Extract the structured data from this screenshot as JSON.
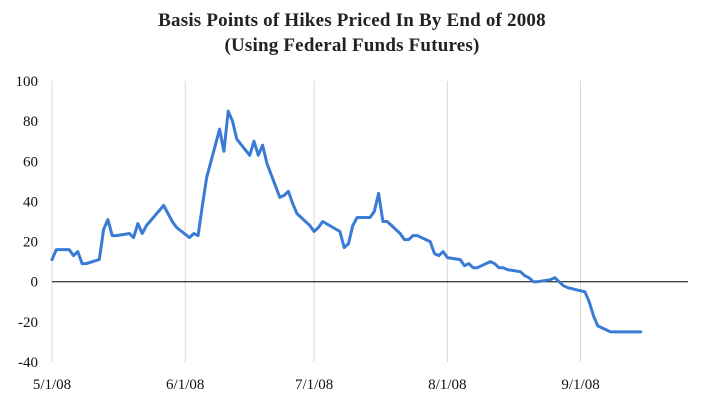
{
  "chart_data": {
    "type": "line",
    "title": "Basis Points of Hikes Priced In By End of 2008",
    "subtitle": "(Using Federal Funds Futures)",
    "xlabel": "",
    "ylabel": "",
    "xlim": [
      "2008-05-01",
      "2008-09-26"
    ],
    "ylim": [
      -40,
      100
    ],
    "y_ticks": [
      100,
      80,
      60,
      40,
      20,
      0,
      -20,
      -40
    ],
    "x_ticks": [
      {
        "date": "2008-05-01",
        "label": "5/1/08"
      },
      {
        "date": "2008-06-01",
        "label": "6/1/08"
      },
      {
        "date": "2008-07-01",
        "label": "7/1/08"
      },
      {
        "date": "2008-08-01",
        "label": "8/1/08"
      },
      {
        "date": "2008-09-01",
        "label": "9/1/08"
      }
    ],
    "grid": "vertical",
    "series_color": "#3a7bd5",
    "series": [
      {
        "x": [
          "2008-05-01",
          "2008-05-02",
          "2008-05-05",
          "2008-05-06",
          "2008-05-07",
          "2008-05-08",
          "2008-05-09",
          "2008-05-12",
          "2008-05-13",
          "2008-05-14",
          "2008-05-15",
          "2008-05-16",
          "2008-05-19",
          "2008-05-20",
          "2008-05-21",
          "2008-05-22",
          "2008-05-23",
          "2008-05-27",
          "2008-05-28",
          "2008-05-29",
          "2008-05-30",
          "2008-06-02",
          "2008-06-03",
          "2008-06-04",
          "2008-06-05",
          "2008-06-06",
          "2008-06-09",
          "2008-06-10",
          "2008-06-11",
          "2008-06-12",
          "2008-06-13",
          "2008-06-16",
          "2008-06-17",
          "2008-06-18",
          "2008-06-19",
          "2008-06-20",
          "2008-06-23",
          "2008-06-24",
          "2008-06-25",
          "2008-06-26",
          "2008-06-27",
          "2008-06-30",
          "2008-07-01",
          "2008-07-02",
          "2008-07-03",
          "2008-07-07",
          "2008-07-08",
          "2008-07-09",
          "2008-07-10",
          "2008-07-11",
          "2008-07-14",
          "2008-07-15",
          "2008-07-16",
          "2008-07-17",
          "2008-07-18",
          "2008-07-21",
          "2008-07-22",
          "2008-07-23",
          "2008-07-24",
          "2008-07-25",
          "2008-07-28",
          "2008-07-29",
          "2008-07-30",
          "2008-07-31",
          "2008-08-01",
          "2008-08-04",
          "2008-08-05",
          "2008-08-06",
          "2008-08-07",
          "2008-08-08",
          "2008-08-11",
          "2008-08-12",
          "2008-08-13",
          "2008-08-14",
          "2008-08-15",
          "2008-08-18",
          "2008-08-19",
          "2008-08-20",
          "2008-08-21",
          "2008-08-22",
          "2008-08-25",
          "2008-08-26",
          "2008-08-27",
          "2008-08-28",
          "2008-08-29",
          "2008-09-02",
          "2008-09-03",
          "2008-09-04",
          "2008-09-05",
          "2008-09-08",
          "2008-09-09",
          "2008-09-10",
          "2008-09-11",
          "2008-09-12",
          "2008-09-15"
        ],
        "y": [
          11,
          16,
          16,
          13,
          15,
          9,
          9,
          11,
          26,
          31,
          23,
          23,
          24,
          22,
          29,
          24,
          28,
          38,
          34,
          30,
          27,
          22,
          24,
          23,
          38,
          52,
          76,
          65,
          85,
          80,
          71,
          63,
          70,
          63,
          68,
          59,
          42,
          43,
          45,
          39,
          34,
          28,
          25,
          27,
          30,
          25,
          17,
          19,
          28,
          32,
          32,
          35,
          44,
          30,
          30,
          24,
          21,
          21,
          23,
          23,
          20,
          14,
          13,
          15,
          12,
          11,
          8,
          9,
          7,
          7,
          10,
          9,
          7,
          7,
          6,
          5,
          3,
          2,
          0,
          0,
          1,
          2,
          0,
          -2,
          -3,
          -5,
          -10,
          -17,
          -22,
          -25,
          -25,
          -25,
          -25,
          -25,
          -25
        ]
      }
    ]
  }
}
